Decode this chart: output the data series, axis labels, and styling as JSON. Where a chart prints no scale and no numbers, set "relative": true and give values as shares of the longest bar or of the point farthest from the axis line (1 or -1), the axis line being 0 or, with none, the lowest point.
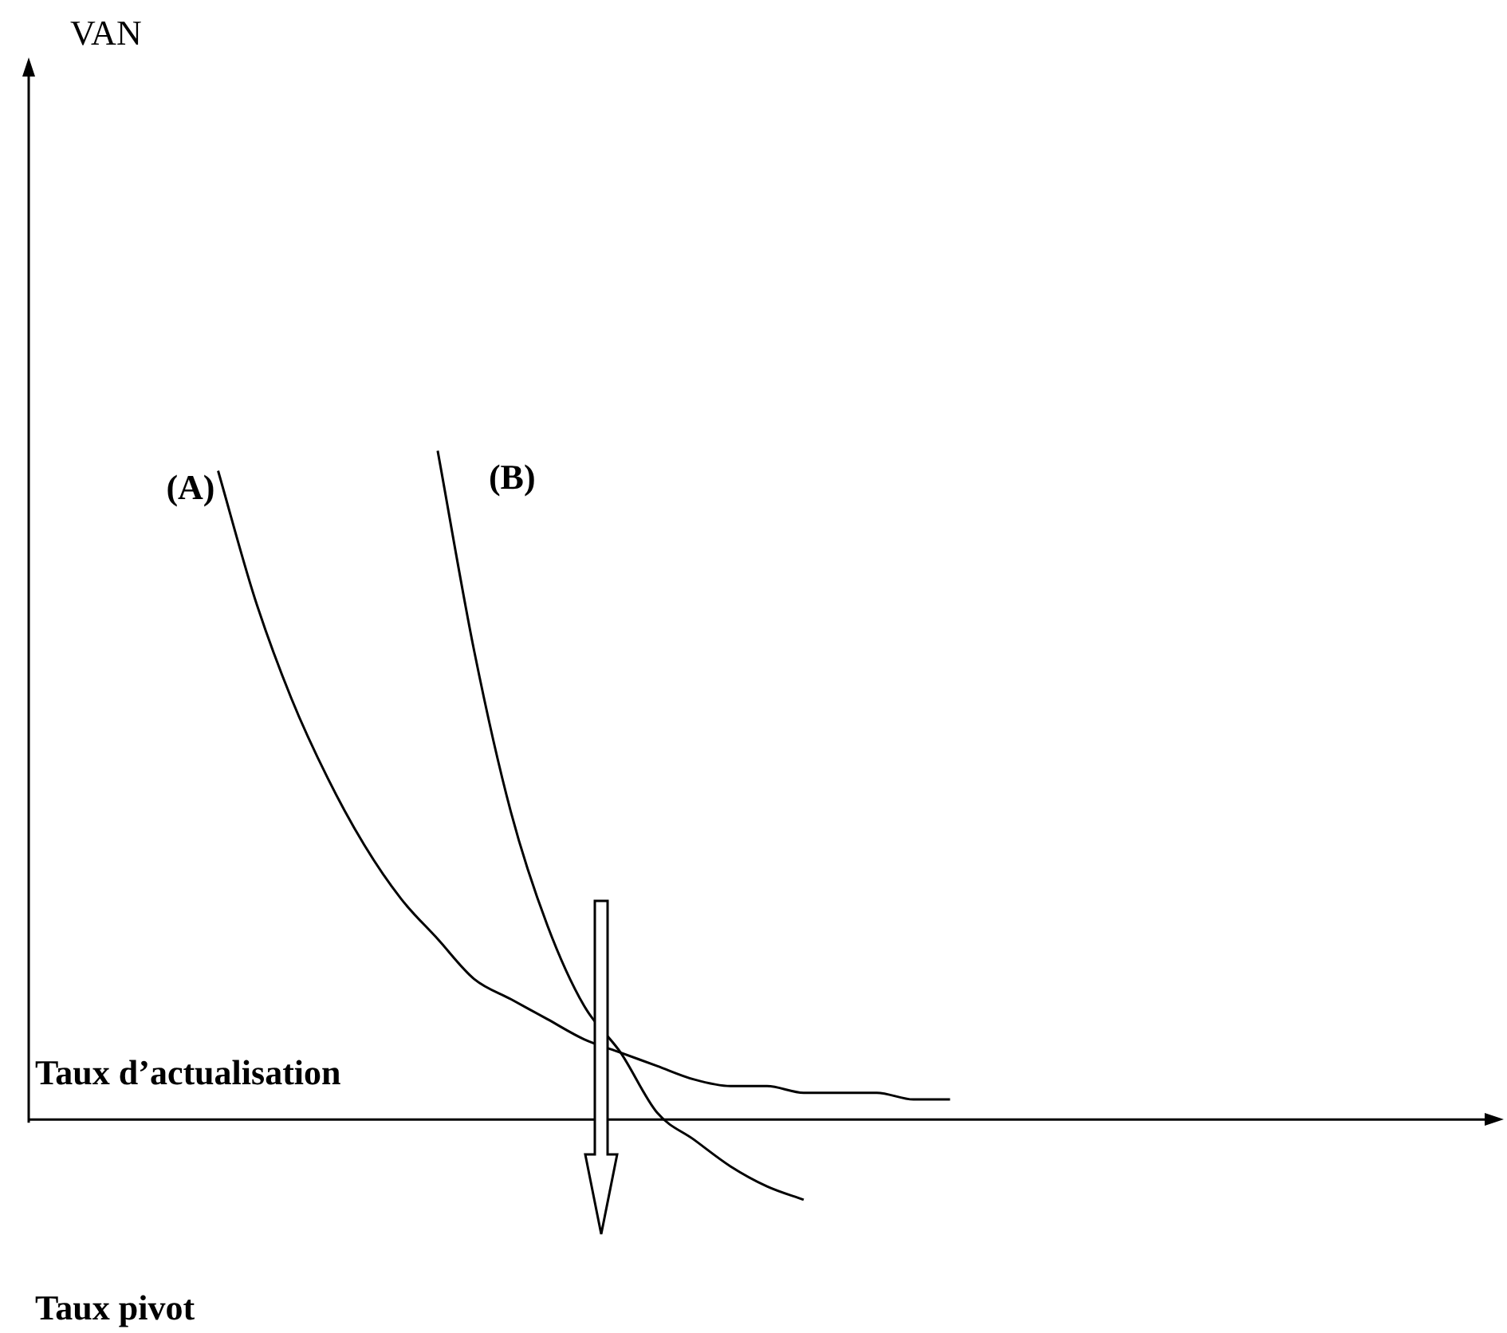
{
  "chart_data": {
    "type": "line",
    "relative": true,
    "xlabel": "Taux d’actualisation",
    "annotations": [
      "VAN",
      "Taux pivot"
    ],
    "categories": [
      null,
      null,
      null,
      null,
      null,
      null,
      null,
      null,
      null,
      null,
      null,
      null,
      null,
      null,
      null,
      null,
      null,
      null,
      null,
      null,
      null,
      null,
      null,
      null,
      null,
      null,
      null,
      null,
      null,
      null,
      null,
      null,
      null,
      null,
      null,
      null,
      null,
      null,
      null,
      null,
      null
    ],
    "series": [
      {
        "name": "(A)",
        "color": "#000000",
        "values": [
          null,
          null,
          null,
          null,
          null,
          0.97,
          0.78,
          0.63,
          0.51,
          0.41,
          0.33,
          0.27,
          0.21,
          0.18,
          0.15,
          0.12,
          0.1,
          0.08,
          0.06,
          0.05,
          0.05,
          0.04,
          0.04,
          0.04,
          0.03,
          0.03,
          null,
          null,
          null,
          null,
          null,
          null,
          null,
          null,
          null,
          null,
          null,
          null,
          null,
          null,
          null
        ]
      },
      {
        "name": "(B)",
        "color": "#000000",
        "values": [
          null,
          null,
          null,
          null,
          null,
          null,
          null,
          null,
          null,
          null,
          null,
          1.0,
          0.7,
          0.46,
          0.29,
          0.17,
          0.1,
          0.01,
          -0.03,
          -0.07,
          -0.1,
          -0.12,
          null,
          null,
          null,
          null,
          null,
          null,
          null,
          null,
          null,
          null,
          null,
          null,
          null,
          null,
          null,
          null,
          null,
          null,
          null
        ]
      }
    ],
    "legend": false,
    "marker": "none",
    "line_style": "solid"
  }
}
